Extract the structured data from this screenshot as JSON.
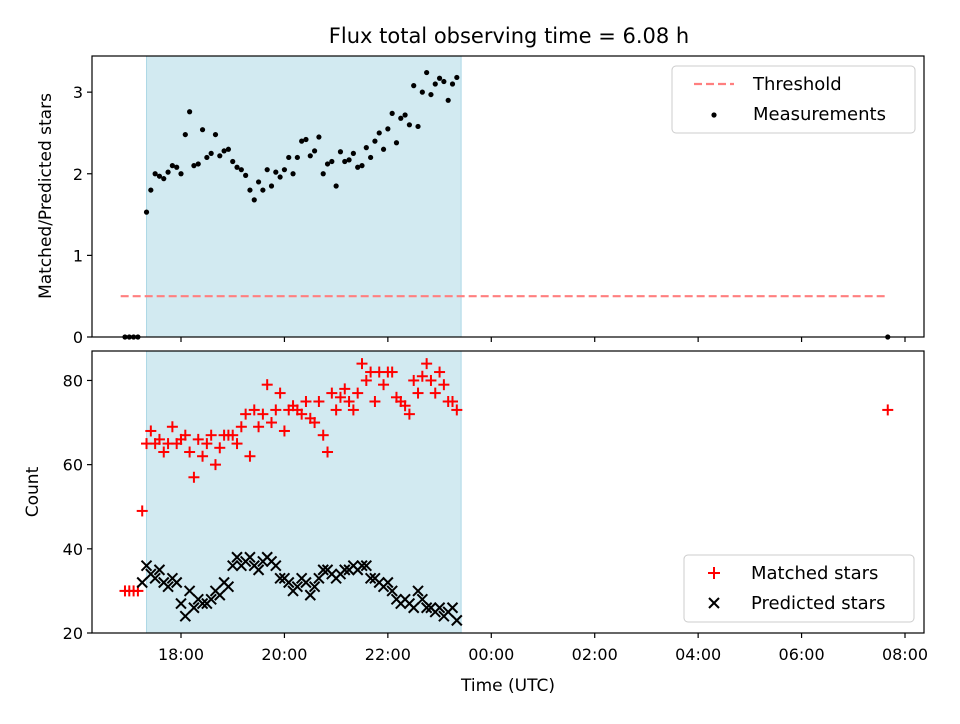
{
  "chart_data": {
    "type": "scatter",
    "title": "Flux total observing time = 6.08 h",
    "xlabel": "Time (UTC)",
    "x_ticks": [
      "18:00",
      "20:00",
      "22:00",
      "00:00",
      "02:00",
      "04:00",
      "06:00",
      "08:00"
    ],
    "colors": {
      "threshold": "#ff7f7f",
      "measurements": "#000000",
      "matched": "#ff0000",
      "predicted": "#000000",
      "shade": "#add8e6"
    },
    "observing_window": [
      "17:20",
      "23:25"
    ],
    "panels": [
      {
        "ylabel": "Matched/Predicted stars",
        "ylim": [
          0,
          3.4
        ],
        "y_ticks": [
          "0",
          "1",
          "2",
          "3"
        ],
        "legend_position": "top-right",
        "threshold": {
          "name": "Threshold",
          "value": 0.5,
          "x_range": [
            "16:50",
            "07:40"
          ]
        },
        "series": [
          {
            "name": "Measurements",
            "marker": "dot",
            "points": [
              [
                "16:55",
                0
              ],
              [
                "17:00",
                0
              ],
              [
                "17:05",
                0
              ],
              [
                "17:10",
                0
              ],
              [
                "17:20",
                1.53
              ],
              [
                "17:25",
                1.8
              ],
              [
                "17:30",
                2.0
              ],
              [
                "17:35",
                1.97
              ],
              [
                "17:40",
                1.94
              ],
              [
                "17:45",
                2.02
              ],
              [
                "17:50",
                2.1
              ],
              [
                "17:55",
                2.08
              ],
              [
                "18:00",
                2.0
              ],
              [
                "18:05",
                2.48
              ],
              [
                "18:10",
                2.76
              ],
              [
                "18:15",
                2.1
              ],
              [
                "18:20",
                2.12
              ],
              [
                "18:25",
                2.54
              ],
              [
                "18:30",
                2.2
              ],
              [
                "18:35",
                2.25
              ],
              [
                "18:40",
                2.48
              ],
              [
                "18:45",
                2.22
              ],
              [
                "18:50",
                2.28
              ],
              [
                "18:55",
                2.3
              ],
              [
                "19:00",
                2.15
              ],
              [
                "19:05",
                2.08
              ],
              [
                "19:10",
                2.05
              ],
              [
                "19:15",
                1.98
              ],
              [
                "19:20",
                1.8
              ],
              [
                "19:25",
                1.68
              ],
              [
                "19:30",
                1.9
              ],
              [
                "19:35",
                1.8
              ],
              [
                "19:40",
                2.05
              ],
              [
                "19:45",
                1.85
              ],
              [
                "19:50",
                2.02
              ],
              [
                "19:55",
                1.96
              ],
              [
                "20:00",
                2.05
              ],
              [
                "20:05",
                2.2
              ],
              [
                "20:10",
                2.0
              ],
              [
                "20:15",
                2.2
              ],
              [
                "20:20",
                2.4
              ],
              [
                "20:25",
                2.42
              ],
              [
                "20:30",
                2.22
              ],
              [
                "20:35",
                2.28
              ],
              [
                "20:40",
                2.45
              ],
              [
                "20:45",
                2.0
              ],
              [
                "20:50",
                2.12
              ],
              [
                "20:55",
                2.15
              ],
              [
                "21:00",
                1.85
              ],
              [
                "21:05",
                2.27
              ],
              [
                "21:10",
                2.15
              ],
              [
                "21:15",
                2.17
              ],
              [
                "21:20",
                2.25
              ],
              [
                "21:25",
                2.08
              ],
              [
                "21:30",
                2.1
              ],
              [
                "21:35",
                2.32
              ],
              [
                "21:40",
                2.2
              ],
              [
                "21:45",
                2.4
              ],
              [
                "21:50",
                2.5
              ],
              [
                "21:55",
                2.3
              ],
              [
                "22:00",
                2.55
              ],
              [
                "22:05",
                2.74
              ],
              [
                "22:10",
                2.38
              ],
              [
                "22:15",
                2.68
              ],
              [
                "22:20",
                2.72
              ],
              [
                "22:25",
                2.6
              ],
              [
                "22:30",
                3.08
              ],
              [
                "22:35",
                2.58
              ],
              [
                "22:40",
                3.0
              ],
              [
                "22:45",
                3.24
              ],
              [
                "22:50",
                2.97
              ],
              [
                "22:55",
                3.1
              ],
              [
                "23:00",
                3.17
              ],
              [
                "23:05",
                3.13
              ],
              [
                "23:10",
                2.9
              ],
              [
                "23:15",
                3.1
              ],
              [
                "23:20",
                3.18
              ],
              [
                "07:40",
                0
              ]
            ]
          }
        ]
      },
      {
        "ylabel": "Count",
        "ylim": [
          20,
          87
        ],
        "y_ticks": [
          "20",
          "40",
          "60",
          "80"
        ],
        "legend_position": "lower-right",
        "series": [
          {
            "name": "Matched stars",
            "marker": "plus",
            "points": [
              [
                "16:55",
                30
              ],
              [
                "17:00",
                30
              ],
              [
                "17:05",
                30
              ],
              [
                "17:10",
                30
              ],
              [
                "17:15",
                49
              ],
              [
                "17:20",
                65
              ],
              [
                "17:25",
                68
              ],
              [
                "17:30",
                65
              ],
              [
                "17:35",
                66
              ],
              [
                "17:40",
                63
              ],
              [
                "17:45",
                65
              ],
              [
                "17:50",
                69
              ],
              [
                "17:55",
                65
              ],
              [
                "18:00",
                66
              ],
              [
                "18:05",
                67
              ],
              [
                "18:10",
                63
              ],
              [
                "18:15",
                57
              ],
              [
                "18:20",
                66
              ],
              [
                "18:25",
                62
              ],
              [
                "18:30",
                65
              ],
              [
                "18:35",
                67
              ],
              [
                "18:40",
                60
              ],
              [
                "18:45",
                64
              ],
              [
                "18:50",
                67
              ],
              [
                "18:55",
                67
              ],
              [
                "19:00",
                67
              ],
              [
                "19:05",
                65
              ],
              [
                "19:10",
                69
              ],
              [
                "19:15",
                72
              ],
              [
                "19:20",
                62
              ],
              [
                "19:25",
                73
              ],
              [
                "19:30",
                69
              ],
              [
                "19:35",
                72
              ],
              [
                "19:40",
                79
              ],
              [
                "19:45",
                70
              ],
              [
                "19:50",
                73
              ],
              [
                "19:55",
                77
              ],
              [
                "20:00",
                68
              ],
              [
                "20:05",
                73
              ],
              [
                "20:10",
                74
              ],
              [
                "20:15",
                73
              ],
              [
                "20:20",
                72
              ],
              [
                "20:25",
                75
              ],
              [
                "20:30",
                71
              ],
              [
                "20:35",
                70
              ],
              [
                "20:40",
                75
              ],
              [
                "20:45",
                67
              ],
              [
                "20:50",
                63
              ],
              [
                "20:55",
                77
              ],
              [
                "21:00",
                73
              ],
              [
                "21:05",
                76
              ],
              [
                "21:10",
                78
              ],
              [
                "21:15",
                75
              ],
              [
                "21:20",
                73
              ],
              [
                "21:25",
                77
              ],
              [
                "21:30",
                84
              ],
              [
                "21:35",
                80
              ],
              [
                "21:40",
                82
              ],
              [
                "21:45",
                75
              ],
              [
                "21:50",
                82
              ],
              [
                "21:55",
                79
              ],
              [
                "22:00",
                82
              ],
              [
                "22:05",
                82
              ],
              [
                "22:10",
                76
              ],
              [
                "22:15",
                75
              ],
              [
                "22:20",
                74
              ],
              [
                "22:25",
                72
              ],
              [
                "22:30",
                80
              ],
              [
                "22:35",
                77
              ],
              [
                "22:40",
                81
              ],
              [
                "22:45",
                84
              ],
              [
                "22:50",
                80
              ],
              [
                "22:55",
                77
              ],
              [
                "23:00",
                82
              ],
              [
                "23:05",
                79
              ],
              [
                "23:10",
                75
              ],
              [
                "23:15",
                75
              ],
              [
                "23:20",
                73
              ],
              [
                "07:40",
                73
              ]
            ]
          },
          {
            "name": "Predicted stars",
            "marker": "cross",
            "points": [
              [
                "17:15",
                32
              ],
              [
                "17:20",
                36
              ],
              [
                "17:25",
                34
              ],
              [
                "17:30",
                33
              ],
              [
                "17:35",
                35
              ],
              [
                "17:40",
                32
              ],
              [
                "17:45",
                31
              ],
              [
                "17:50",
                33
              ],
              [
                "17:55",
                32
              ],
              [
                "18:00",
                27
              ],
              [
                "18:05",
                24
              ],
              [
                "18:10",
                30
              ],
              [
                "18:15",
                26
              ],
              [
                "18:20",
                28
              ],
              [
                "18:25",
                27
              ],
              [
                "18:30",
                27
              ],
              [
                "18:35",
                28
              ],
              [
                "18:40",
                30
              ],
              [
                "18:45",
                29
              ],
              [
                "18:50",
                32
              ],
              [
                "18:55",
                31
              ],
              [
                "19:00",
                36
              ],
              [
                "19:05",
                38
              ],
              [
                "19:10",
                36
              ],
              [
                "19:15",
                37
              ],
              [
                "19:20",
                38
              ],
              [
                "19:25",
                36
              ],
              [
                "19:30",
                35
              ],
              [
                "19:35",
                37
              ],
              [
                "19:40",
                38
              ],
              [
                "19:45",
                37
              ],
              [
                "19:50",
                36
              ],
              [
                "19:55",
                33
              ],
              [
                "20:00",
                33
              ],
              [
                "20:05",
                32
              ],
              [
                "20:10",
                30
              ],
              [
                "20:15",
                31
              ],
              [
                "20:20",
                33
              ],
              [
                "20:25",
                32
              ],
              [
                "20:30",
                29
              ],
              [
                "20:35",
                31
              ],
              [
                "20:40",
                33
              ],
              [
                "20:45",
                35
              ],
              [
                "20:50",
                35
              ],
              [
                "20:55",
                34
              ],
              [
                "21:00",
                33
              ],
              [
                "21:05",
                34
              ],
              [
                "21:10",
                35
              ],
              [
                "21:15",
                35
              ],
              [
                "21:20",
                36
              ],
              [
                "21:25",
                35
              ],
              [
                "21:30",
                36
              ],
              [
                "21:35",
                36
              ],
              [
                "21:40",
                33
              ],
              [
                "21:45",
                33
              ],
              [
                "21:50",
                32
              ],
              [
                "21:55",
                31
              ],
              [
                "22:00",
                32
              ],
              [
                "22:05",
                30
              ],
              [
                "22:10",
                28
              ],
              [
                "22:15",
                27
              ],
              [
                "22:20",
                28
              ],
              [
                "22:25",
                27
              ],
              [
                "22:30",
                26
              ],
              [
                "22:35",
                30
              ],
              [
                "22:40",
                28
              ],
              [
                "22:45",
                26
              ],
              [
                "22:50",
                26
              ],
              [
                "22:55",
                25
              ],
              [
                "23:00",
                26
              ],
              [
                "23:05",
                24
              ],
              [
                "23:10",
                25
              ],
              [
                "23:15",
                26
              ],
              [
                "23:20",
                23
              ]
            ]
          }
        ]
      }
    ]
  }
}
